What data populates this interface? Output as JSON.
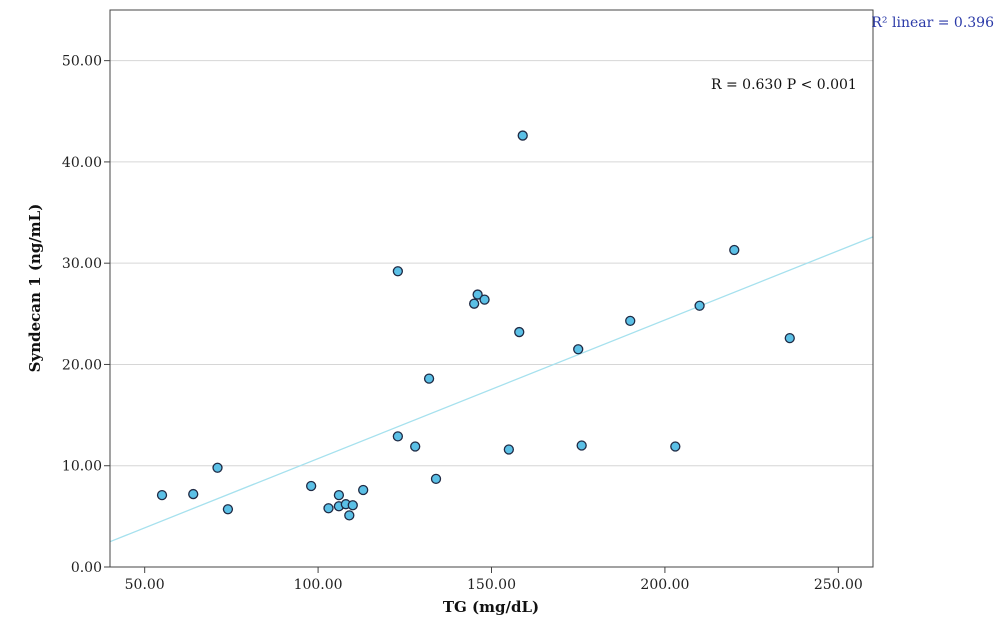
{
  "chart_data": {
    "type": "scatter",
    "xlabel": "TG (mg/dL)",
    "ylabel": "Syndecan 1 (ng/mL)",
    "xlim": [
      40,
      260
    ],
    "ylim": [
      0,
      55
    ],
    "x_ticks": [
      50,
      100,
      150,
      200,
      250
    ],
    "x_tick_labels": [
      "50.00",
      "100.00",
      "150.00",
      "200.00",
      "250.00"
    ],
    "y_ticks": [
      0,
      10,
      20,
      30,
      40,
      50
    ],
    "y_tick_labels": [
      "0.00",
      "10.00",
      "20.00",
      "30.00",
      "40.00",
      "50.00"
    ],
    "grid": "horizontal",
    "annotation": "R = 0.630 P < 0.001",
    "fit_label": "R² linear = 0.396",
    "fit_line": {
      "x": [
        40,
        260
      ],
      "y": [
        2.5,
        32.6
      ]
    },
    "colors": {
      "point_fill": "#5bc0e6",
      "point_stroke": "#1f2a44",
      "fit_line": "#a6e1ee",
      "fit_label": "#2b3aa8"
    },
    "points": [
      {
        "x": 55,
        "y": 7.1
      },
      {
        "x": 64,
        "y": 7.2
      },
      {
        "x": 71,
        "y": 9.8
      },
      {
        "x": 74,
        "y": 5.7
      },
      {
        "x": 98,
        "y": 8.0
      },
      {
        "x": 103,
        "y": 5.8
      },
      {
        "x": 106,
        "y": 7.1
      },
      {
        "x": 106,
        "y": 6.0
      },
      {
        "x": 108,
        "y": 6.2
      },
      {
        "x": 109,
        "y": 5.1
      },
      {
        "x": 110,
        "y": 6.1
      },
      {
        "x": 113,
        "y": 7.6
      },
      {
        "x": 123,
        "y": 29.2
      },
      {
        "x": 123,
        "y": 12.9
      },
      {
        "x": 128,
        "y": 11.9
      },
      {
        "x": 132,
        "y": 18.6
      },
      {
        "x": 134,
        "y": 8.7
      },
      {
        "x": 145,
        "y": 26.0
      },
      {
        "x": 146,
        "y": 26.9
      },
      {
        "x": 148,
        "y": 26.4
      },
      {
        "x": 155,
        "y": 11.6
      },
      {
        "x": 158,
        "y": 23.2
      },
      {
        "x": 159,
        "y": 42.6
      },
      {
        "x": 175,
        "y": 21.5
      },
      {
        "x": 176,
        "y": 12.0
      },
      {
        "x": 190,
        "y": 24.3
      },
      {
        "x": 203,
        "y": 11.9
      },
      {
        "x": 210,
        "y": 25.8
      },
      {
        "x": 220,
        "y": 31.3
      },
      {
        "x": 236,
        "y": 22.6
      }
    ]
  }
}
